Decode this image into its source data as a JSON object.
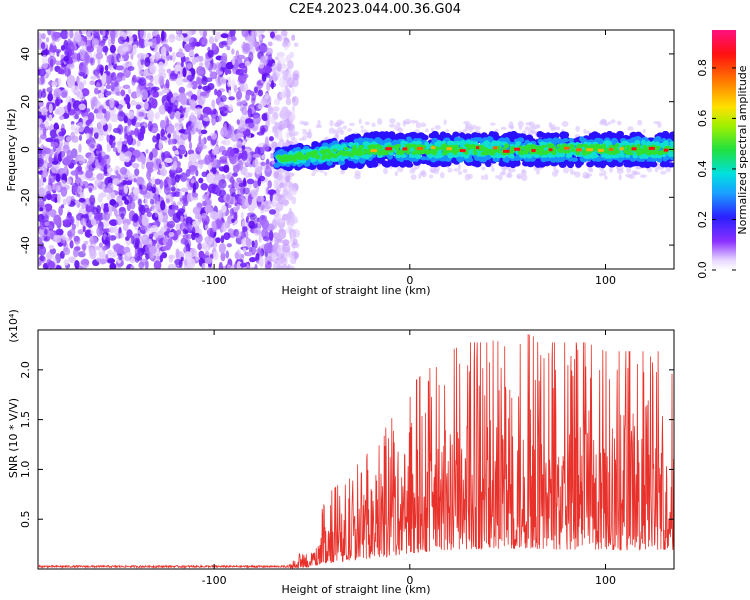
{
  "title": "C2E4.2023.044.00.36.G04",
  "chart_data": [
    {
      "type": "heatmap",
      "xlabel": "Height of straight line (km)",
      "ylabel": "Frequency (Hz)",
      "xlim": [
        -190,
        135
      ],
      "ylim": [
        -50,
        50
      ],
      "xticks": [
        -100,
        0,
        100
      ],
      "yticks": [
        -40,
        -20,
        0,
        20,
        40
      ],
      "noise_region_x": [
        -190,
        -58
      ],
      "signal_region_x": [
        -70,
        135
      ],
      "signal_frequency_hz": 0,
      "signal_band_halfwidth_hz": 5,
      "colorbar": {
        "label": "Normalized spectral amplitude",
        "range": [
          0.0,
          0.95
        ],
        "ticks": [
          0.0,
          0.2,
          0.4,
          0.6,
          0.8
        ]
      }
    },
    {
      "type": "line",
      "xlabel": "Height of straight line (km)",
      "ylabel": "SNR (10 * V/V)",
      "yscale_note": "(x10⁴)",
      "xlim": [
        -190,
        135
      ],
      "ylim": [
        0,
        2.4
      ],
      "xticks": [
        -100,
        0,
        100
      ],
      "yticks": [
        0.5,
        1.0,
        1.5,
        2.0
      ],
      "color": "#e8312a",
      "x": [
        -190,
        -150,
        -100,
        -70,
        -60,
        -50,
        -45,
        -40,
        -30,
        -20,
        -10,
        -5,
        0,
        10,
        20,
        30,
        40,
        50,
        60,
        70,
        80,
        90,
        100,
        110,
        120,
        130,
        135
      ],
      "y": [
        0.02,
        0.02,
        0.02,
        0.02,
        0.05,
        0.15,
        0.35,
        0.45,
        0.55,
        0.7,
        0.85,
        0.95,
        1.05,
        1.15,
        1.25,
        1.3,
        1.3,
        1.35,
        1.35,
        1.3,
        1.3,
        1.3,
        1.25,
        1.25,
        1.25,
        1.25,
        1.25
      ]
    }
  ]
}
